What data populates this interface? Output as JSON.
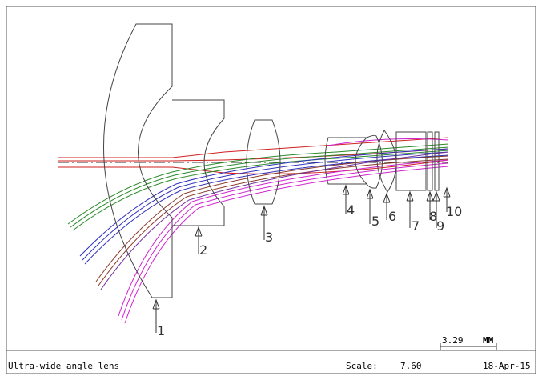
{
  "labels": [
    "1",
    "2",
    "3",
    "4",
    "5",
    "6",
    "7",
    "8",
    "9",
    "10"
  ],
  "scale_bar": {
    "value": "3.29",
    "unit": "MM"
  },
  "footer": {
    "title": "Ultra-wide angle lens",
    "scale_label": "Scale:",
    "scale_value": "7.60",
    "date": "18-Apr-15"
  }
}
